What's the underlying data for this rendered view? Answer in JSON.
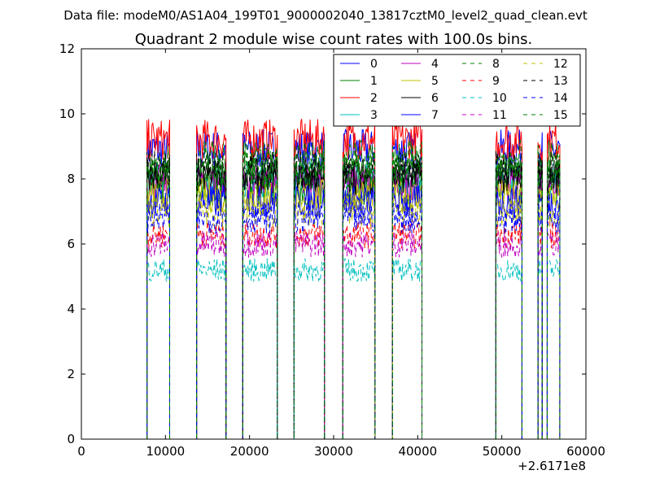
{
  "chart_data": {
    "type": "line",
    "header": "Data file: modeM0/AS1A04_199T01_9000002040_13817cztM0_level2_quad_clean.evt",
    "title": "Quadrant 2 module wise count rates with 100.0s bins.",
    "xlabel": "",
    "ylabel": "",
    "x_offset_label": "+2.6171e8",
    "xlim": [
      0,
      60000
    ],
    "ylim": [
      0,
      12
    ],
    "x_ticks": [
      0,
      10000,
      20000,
      30000,
      40000,
      50000,
      60000
    ],
    "x_tick_labels": [
      "0",
      "10000",
      "20000",
      "30000",
      "40000",
      "50000",
      "60000"
    ],
    "y_ticks": [
      0,
      2,
      4,
      6,
      8,
      10,
      12
    ],
    "y_tick_labels": [
      "0",
      "2",
      "4",
      "6",
      "8",
      "10",
      "12"
    ],
    "grid": false,
    "legend_position": "top-right",
    "segments": [
      [
        7800,
        10500
      ],
      [
        13700,
        17200
      ],
      [
        19200,
        23300
      ],
      [
        25300,
        28900
      ],
      [
        31100,
        34900
      ],
      [
        37000,
        40500
      ],
      [
        49300,
        52400
      ],
      [
        54300,
        54800
      ],
      [
        55400,
        56900
      ]
    ],
    "series": [
      {
        "name": "0",
        "color": "#0000ff",
        "dash": "solid",
        "level": 8.9
      },
      {
        "name": "1",
        "color": "#008000",
        "dash": "solid",
        "level": 7.7
      },
      {
        "name": "2",
        "color": "#ff0000",
        "dash": "solid",
        "level": 9.2
      },
      {
        "name": "3",
        "color": "#00bfbf",
        "dash": "solid",
        "level": 8.0
      },
      {
        "name": "4",
        "color": "#bf00bf",
        "dash": "solid",
        "level": 7.9
      },
      {
        "name": "5",
        "color": "#bfbf00",
        "dash": "solid",
        "level": 7.5
      },
      {
        "name": "6",
        "color": "#000000",
        "dash": "solid",
        "level": 8.1
      },
      {
        "name": "7",
        "color": "#0000ff",
        "dash": "solid",
        "level": 7.3
      },
      {
        "name": "8",
        "color": "#008000",
        "dash": "dashed",
        "level": 8.2
      },
      {
        "name": "9",
        "color": "#ff0000",
        "dash": "dashed",
        "level": 6.3
      },
      {
        "name": "10",
        "color": "#00bfbf",
        "dash": "dashed",
        "level": 5.2
      },
      {
        "name": "11",
        "color": "#bf00bf",
        "dash": "dashed",
        "level": 6.0
      },
      {
        "name": "12",
        "color": "#bfbf00",
        "dash": "dashed",
        "level": 7.0
      },
      {
        "name": "13",
        "color": "#000000",
        "dash": "dashed",
        "level": 8.3
      },
      {
        "name": "14",
        "color": "#0000ff",
        "dash": "dashed",
        "level": 6.8
      },
      {
        "name": "15",
        "color": "#008000",
        "dash": "dashed",
        "level": 8.6
      }
    ]
  }
}
